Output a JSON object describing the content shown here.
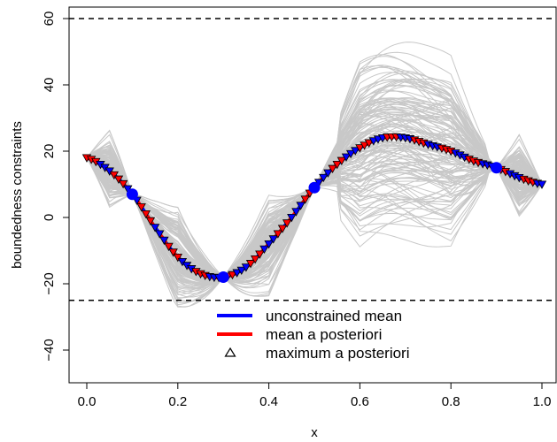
{
  "chart_data": {
    "type": "line",
    "title": "",
    "xlabel": "x",
    "ylabel": "boundedness constraints",
    "xlim": [
      0,
      1
    ],
    "ylim": [
      -50,
      63
    ],
    "xticks": [
      0.0,
      0.2,
      0.4,
      0.6,
      0.8,
      1.0
    ],
    "xtick_labels": [
      "0.0",
      "0.2",
      "0.4",
      "0.6",
      "0.8",
      "1.0"
    ],
    "yticks": [
      -40,
      -20,
      0,
      20,
      40,
      60
    ],
    "ytick_labels": [
      "−40",
      "−20",
      "0",
      "20",
      "40",
      "60"
    ],
    "grid": false,
    "bounds": {
      "upper": 60,
      "lower": -25
    },
    "observations": {
      "x": [
        0.0,
        0.1,
        0.3,
        0.5,
        0.9,
        1.0
      ],
      "y": [
        18,
        7,
        -18,
        9,
        15,
        10
      ]
    },
    "series": [
      {
        "name": "unconstrained mean",
        "color": "#0000ff",
        "x": [
          0.0,
          0.05,
          0.1,
          0.15,
          0.2,
          0.25,
          0.3,
          0.35,
          0.4,
          0.45,
          0.5,
          0.55,
          0.6,
          0.65,
          0.7,
          0.75,
          0.8,
          0.85,
          0.9,
          0.95,
          1.0
        ],
        "y": [
          18,
          14,
          7,
          -3,
          -12,
          -17,
          -18,
          -15,
          -8,
          0,
          9,
          16,
          21,
          24,
          24,
          22,
          20,
          17,
          15,
          12,
          10
        ]
      },
      {
        "name": "mean a posteriori",
        "color": "#ff0000",
        "x": [
          0.0,
          0.05,
          0.1,
          0.15,
          0.2,
          0.25,
          0.3,
          0.35,
          0.4,
          0.45,
          0.5,
          0.55,
          0.6,
          0.65,
          0.7,
          0.75,
          0.8,
          0.85,
          0.9,
          0.95,
          1.0
        ],
        "y": [
          18,
          14,
          7,
          -3,
          -12,
          -17,
          -18,
          -15,
          -8,
          0,
          9,
          16,
          21,
          24,
          24,
          22,
          20,
          17,
          15,
          12,
          10
        ]
      },
      {
        "name": "maximum a posteriori",
        "marker": "triangle",
        "x": [
          0.0,
          0.05,
          0.1,
          0.15,
          0.2,
          0.25,
          0.3,
          0.35,
          0.4,
          0.45,
          0.5,
          0.55,
          0.6,
          0.65,
          0.7,
          0.75,
          0.8,
          0.85,
          0.9,
          0.95,
          1.0
        ],
        "y": [
          18,
          14,
          7,
          -3,
          -12,
          -17,
          -18,
          -15,
          -8,
          0,
          9,
          16,
          21,
          24,
          24,
          22,
          20,
          17,
          15,
          12,
          10
        ]
      }
    ],
    "legend": {
      "position": "bottom-center",
      "entries": [
        {
          "label": "unconstrained mean",
          "color": "#0000ff",
          "symbol": "line"
        },
        {
          "label": "mean a posteriori",
          "color": "#ff0000",
          "symbol": "line"
        },
        {
          "label": "maximum a posteriori",
          "color": "#000000",
          "symbol": "triangle"
        }
      ]
    },
    "sample_paths_color": "#c8c8c8",
    "bound_line_color": "#000000"
  }
}
